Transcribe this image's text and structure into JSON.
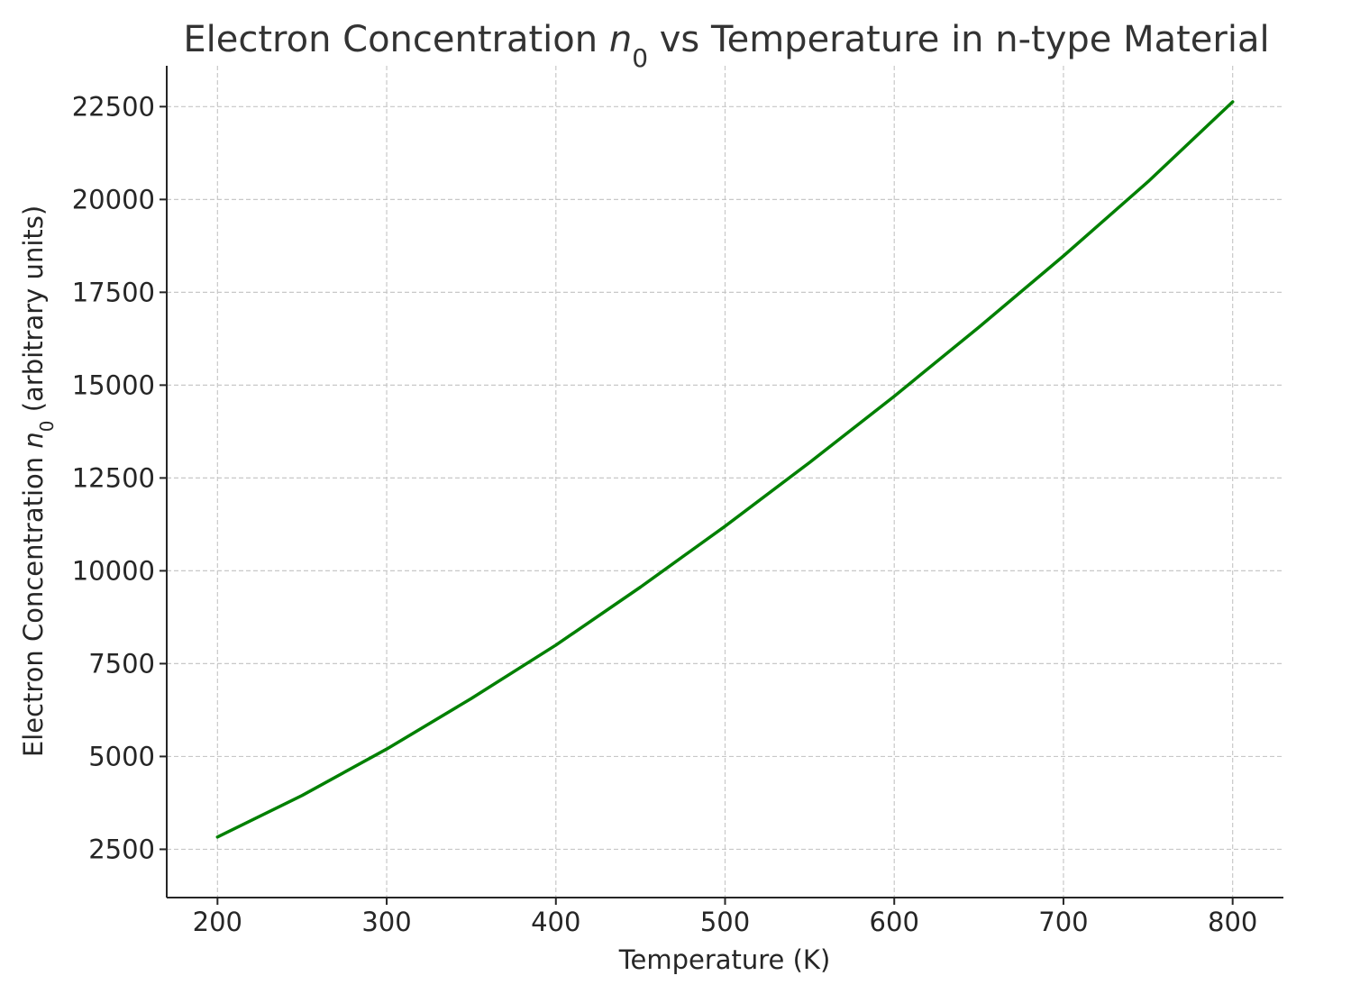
{
  "chart_data": {
    "type": "line",
    "title_prefix": "Electron Concentration ",
    "title_symbol": "n",
    "title_subscript": "0",
    "title_suffix": " vs Temperature in n-type Material",
    "xlabel": "Temperature (K)",
    "ylabel_prefix": "Electron Concentration ",
    "ylabel_symbol": "n",
    "ylabel_subscript": "0",
    "ylabel_suffix": " (arbitrary units)",
    "xlim": [
      170,
      830
    ],
    "ylim": [
      1200,
      23600
    ],
    "xticks": [
      200,
      300,
      400,
      500,
      600,
      700,
      800
    ],
    "yticks": [
      2500,
      5000,
      7500,
      10000,
      12500,
      15000,
      17500,
      20000,
      22500
    ],
    "grid": true,
    "series": [
      {
        "color": "#008000",
        "x": [
          200,
          250,
          300,
          350,
          400,
          450,
          500,
          550,
          600,
          650,
          700,
          750,
          800
        ],
        "y": [
          2830,
          3950,
          5200,
          6560,
          8000,
          9560,
          11200,
          12920,
          14700,
          16560,
          18480,
          20480,
          22630
        ]
      }
    ]
  }
}
